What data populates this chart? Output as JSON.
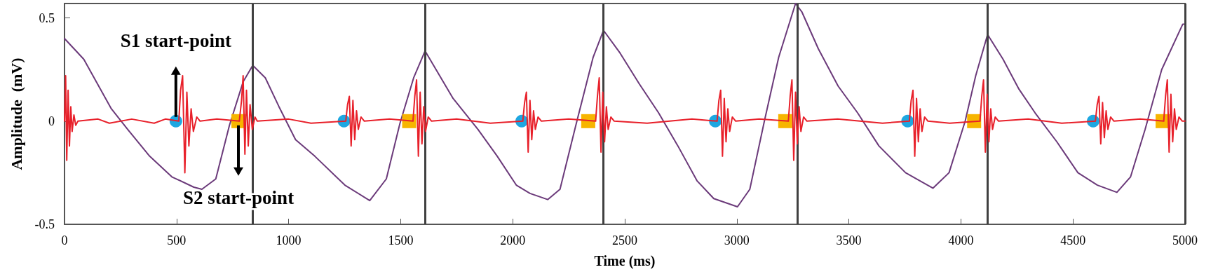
{
  "chart_data": {
    "type": "line",
    "xlabel": "Time (ms)",
    "ylabel": "Amplitude  (mV)",
    "xlim": [
      0,
      5000
    ],
    "ylim": [
      -0.5,
      0.57
    ],
    "xticks": [
      0,
      500,
      1000,
      1500,
      2000,
      2500,
      3000,
      3500,
      4000,
      4500,
      5000
    ],
    "yticks": [
      -0.5,
      0,
      0.5
    ],
    "grid": false,
    "line_style": "solid",
    "marker": "none",
    "series": [
      {
        "color": "#e8202a",
        "x": [
          0,
          5,
          10,
          16,
          22,
          28,
          34,
          42,
          50,
          60,
          150,
          200,
          300,
          400,
          450,
          510,
          518,
          527,
          537,
          546,
          555,
          565,
          575,
          590,
          605,
          680,
          780,
          790,
          797,
          805,
          812,
          820,
          828,
          838,
          850,
          860,
          1000,
          1100,
          1255,
          1263,
          1271,
          1279,
          1287,
          1295,
          1303,
          1311,
          1323,
          1338,
          1450,
          1555,
          1563,
          1571,
          1579,
          1587,
          1595,
          1603,
          1611,
          1623,
          1638,
          1750,
          1900,
          2045,
          2053,
          2061,
          2069,
          2077,
          2085,
          2093,
          2101,
          2113,
          2128,
          2250,
          2370,
          2378,
          2386,
          2394,
          2402,
          2410,
          2418,
          2426,
          2438,
          2453,
          2600,
          2800,
          2912,
          2920,
          2928,
          2936,
          2944,
          2952,
          2960,
          2968,
          2980,
          2995,
          3100,
          3230,
          3238,
          3246,
          3254,
          3262,
          3270,
          3278,
          3286,
          3298,
          3313,
          3450,
          3650,
          3770,
          3778,
          3786,
          3794,
          3802,
          3810,
          3818,
          3826,
          3838,
          3853,
          3950,
          4085,
          4093,
          4101,
          4109,
          4117,
          4125,
          4133,
          4141,
          4153,
          4168,
          4300,
          4450,
          4600,
          4608,
          4616,
          4624,
          4632,
          4640,
          4648,
          4656,
          4668,
          4683,
          4800,
          4905,
          4913,
          4921,
          4929,
          4937,
          4945,
          4953,
          4961,
          4973,
          4988,
          5000
        ],
        "values": [
          0,
          0.22,
          -0.19,
          0.15,
          -0.12,
          0.07,
          -0.05,
          0.03,
          -0.02,
          0,
          0.01,
          -0.01,
          0.01,
          -0.01,
          0.01,
          0,
          0.15,
          0.22,
          -0.25,
          0.14,
          -0.12,
          0.06,
          -0.05,
          0.02,
          0,
          0.01,
          0,
          0.1,
          0.22,
          -0.16,
          0.15,
          -0.12,
          0.08,
          -0.04,
          0.02,
          0,
          0.01,
          -0.01,
          0,
          0.08,
          0.12,
          -0.12,
          0.1,
          -0.09,
          0.05,
          -0.04,
          0.02,
          0,
          0.01,
          0,
          0.12,
          0.2,
          -0.17,
          0.14,
          -0.11,
          0.07,
          -0.05,
          0.02,
          0,
          0.01,
          -0.01,
          0,
          0.09,
          0.14,
          -0.15,
          0.1,
          -0.09,
          0.05,
          -0.04,
          0.02,
          0,
          0.01,
          0,
          0.12,
          0.21,
          -0.15,
          0.14,
          -0.1,
          0.07,
          -0.04,
          0.02,
          0,
          -0.01,
          0.01,
          0,
          0.1,
          0.15,
          -0.17,
          0.11,
          -0.1,
          0.06,
          -0.05,
          0.02,
          0,
          0.01,
          0,
          0.12,
          0.2,
          -0.19,
          0.14,
          -0.11,
          0.07,
          -0.05,
          0.02,
          0,
          0.01,
          -0.01,
          0,
          0.1,
          0.15,
          -0.17,
          0.11,
          -0.1,
          0.06,
          -0.05,
          0.02,
          0,
          -0.01,
          0,
          0.12,
          0.2,
          -0.15,
          0.13,
          -0.1,
          0.06,
          -0.04,
          0.02,
          0,
          0.01,
          -0.01,
          0,
          0.08,
          0.12,
          -0.11,
          0.09,
          -0.08,
          0.05,
          -0.04,
          0.02,
          0,
          0.01,
          0,
          0.12,
          0.2,
          -0.15,
          0.13,
          -0.1,
          0.06,
          -0.04,
          0.02,
          0,
          0
        ]
      },
      {
        "color": "#6b3a7a",
        "x": [
          0,
          86,
          209,
          282,
          380,
          479,
          577,
          613,
          675,
          736,
          797,
          840,
          896,
          957,
          1031,
          1117,
          1251,
          1362,
          1436,
          1497,
          1558,
          1609,
          1734,
          1845,
          1931,
          2016,
          2077,
          2156,
          2211,
          2284,
          2359,
          2405,
          2479,
          2565,
          2651,
          2737,
          2823,
          2897,
          3003,
          3058,
          3123,
          3187,
          3262,
          3290,
          3364,
          3452,
          3539,
          3634,
          3753,
          3875,
          3947,
          4019,
          4066,
          4119,
          4188,
          4259,
          4331,
          4428,
          4522,
          4609,
          4696,
          4757,
          4822,
          4896,
          4990,
          5000
        ],
        "values": [
          0.4,
          0.3,
          0.06,
          -0.04,
          -0.17,
          -0.27,
          -0.32,
          -0.33,
          -0.28,
          -0.02,
          0.19,
          0.27,
          0.21,
          0.07,
          -0.09,
          -0.17,
          -0.31,
          -0.385,
          -0.28,
          -0.01,
          0.21,
          0.34,
          0.11,
          -0.04,
          -0.17,
          -0.31,
          -0.35,
          -0.38,
          -0.33,
          -0.01,
          0.31,
          0.44,
          0.33,
          0.18,
          0.04,
          -0.12,
          -0.29,
          -0.375,
          -0.415,
          -0.33,
          0,
          0.31,
          0.57,
          0.53,
          0.35,
          0.17,
          0.04,
          -0.12,
          -0.25,
          -0.325,
          -0.25,
          0,
          0.22,
          0.42,
          0.3,
          0.155,
          0.04,
          -0.1,
          -0.25,
          -0.31,
          -0.345,
          -0.27,
          -0.04,
          0.25,
          0.47,
          0.47
        ]
      },
      {
        "type": "scatter",
        "marker": "circle",
        "color": "#1ea7e1",
        "x": [
          497,
          1247,
          2040,
          2904,
          3762,
          4590
        ],
        "values": [
          0,
          0,
          0,
          0,
          0,
          0
        ]
      },
      {
        "type": "scatter",
        "marker": "square",
        "color": "#f7b500",
        "x": [
          776,
          1538,
          2337,
          3216,
          4059,
          4900
        ],
        "values": [
          0,
          0,
          0,
          0,
          0,
          0
        ]
      }
    ],
    "ref_lines": [
      {
        "axis": "x",
        "value": 840,
        "color": "#404040"
      },
      {
        "axis": "x",
        "value": 1609,
        "color": "#404040"
      },
      {
        "axis": "x",
        "value": 2405,
        "color": "#404040"
      },
      {
        "axis": "x",
        "value": 3270,
        "color": "#404040"
      },
      {
        "axis": "x",
        "value": 4119,
        "color": "#404040"
      },
      {
        "axis": "x",
        "value": 5000,
        "color": "#404040"
      }
    ],
    "annotations": [
      {
        "text": "S1 start-point",
        "x": 497,
        "y": 0
      },
      {
        "text": "S2 start-point",
        "x": 776,
        "y": 0
      }
    ]
  }
}
